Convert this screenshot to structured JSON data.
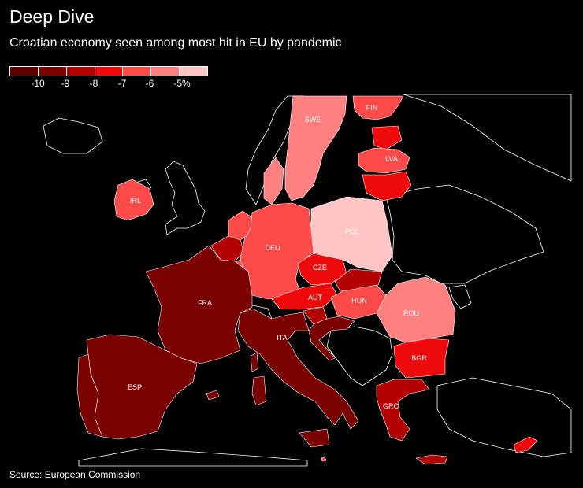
{
  "header": {
    "title": "Deep Dive",
    "subtitle": "Croatian economy seen among most hit in EU by pandemic"
  },
  "legend": {
    "labels": [
      "-10",
      "-9",
      "-8",
      "-7",
      "-6",
      "-5%"
    ],
    "colors": [
      "#5e0000",
      "#7a0000",
      "#b30000",
      "#ee0a0a",
      "#ff4a4a",
      "#ff8080",
      "#ffc4c4"
    ]
  },
  "countries": {
    "SWE": {
      "label": "SWE",
      "color": "#ff8080"
    },
    "FIN": {
      "label": "FIN",
      "color": "#ff4a4a"
    },
    "LVA": {
      "label": "LVA",
      "color": "#ff4a4a"
    },
    "IRL": {
      "label": "IRL",
      "color": "#ff4a4a"
    },
    "POL": {
      "label": "POL",
      "color": "#ffc4c4"
    },
    "DEU": {
      "label": "DEU",
      "color": "#ff4a4a"
    },
    "CZE": {
      "label": "CZE",
      "color": "#ee0a0a"
    },
    "AUT": {
      "label": "AUT",
      "color": "#ee0a0a"
    },
    "HUN": {
      "label": "HUN",
      "color": "#ff4a4a"
    },
    "ROU": {
      "label": "ROU",
      "color": "#ff8080"
    },
    "FRA": {
      "label": "FRA",
      "color": "#7a0000"
    },
    "ITA": {
      "label": "ITA",
      "color": "#7a0000"
    },
    "ESP": {
      "label": "ESP",
      "color": "#7a0000"
    },
    "BGR": {
      "label": "BGR",
      "color": "#ee0a0a"
    },
    "GRC": {
      "label": "GRC",
      "color": "#b30000"
    }
  },
  "footer": {
    "source": "Source: European Commission"
  }
}
